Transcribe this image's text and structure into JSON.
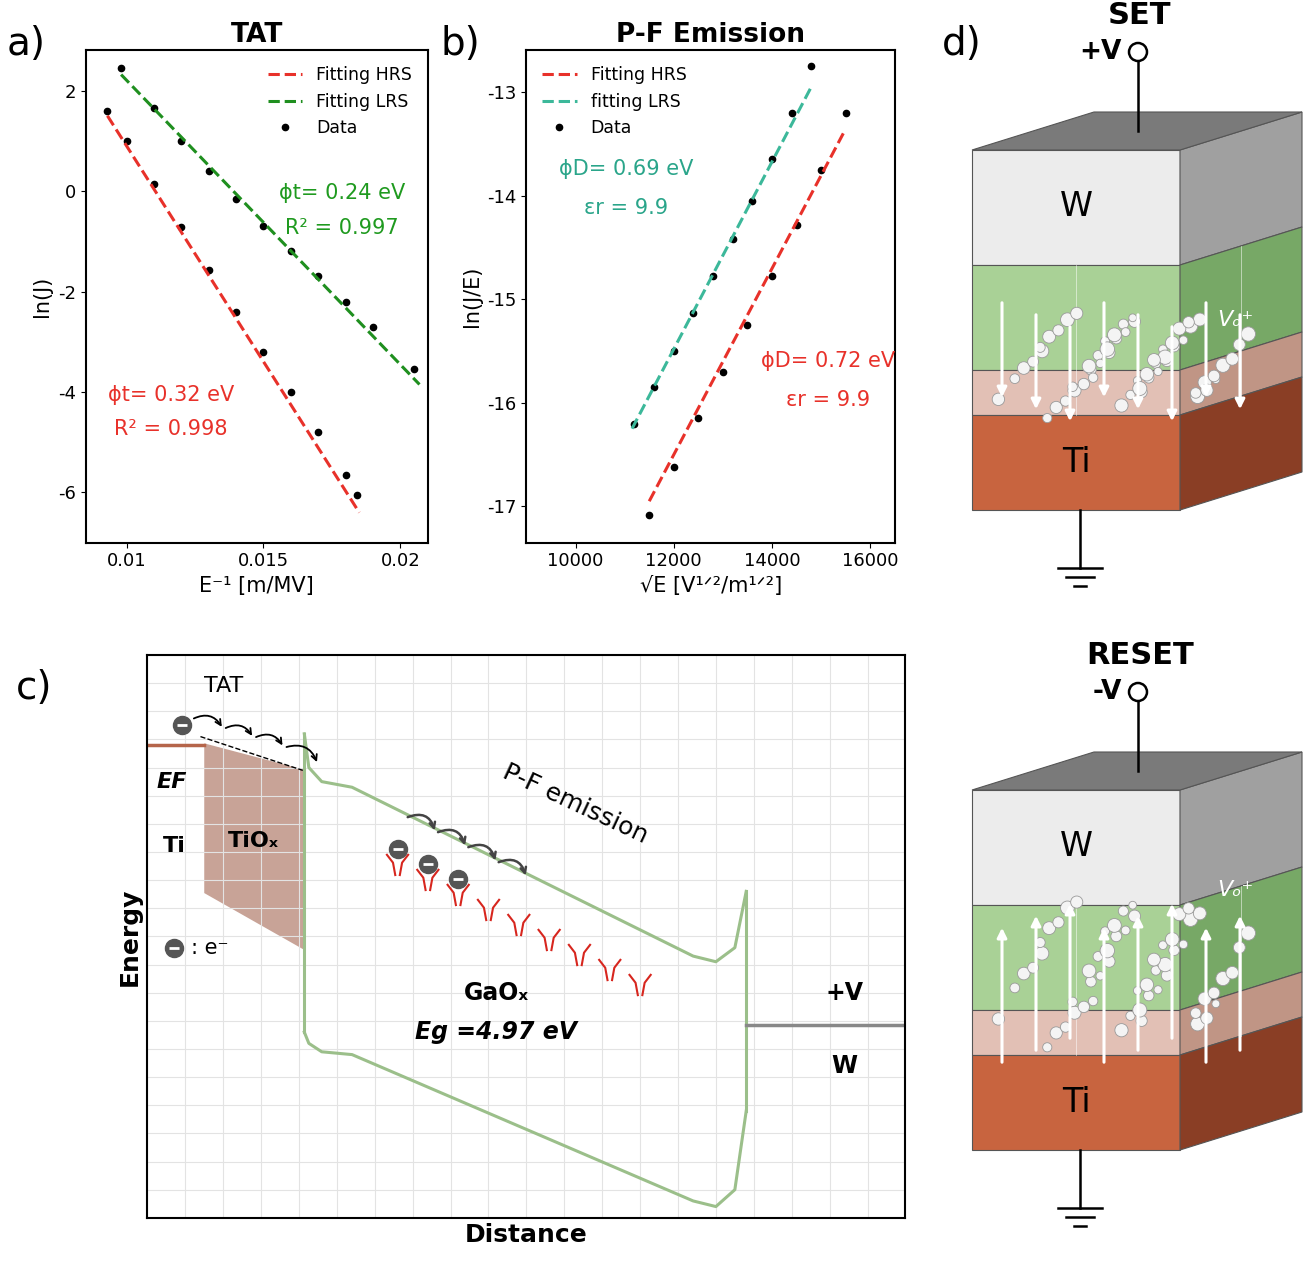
{
  "chart_data": [
    {
      "type": "line",
      "panel": "a)",
      "title": "TAT",
      "x_label": "E⁻¹ [m/MV]",
      "y_label": "ln(J)",
      "xlim": [
        0.0085,
        0.021
      ],
      "xticks": [
        0.01,
        0.015,
        0.02
      ],
      "ylim": [
        -7.0,
        2.8
      ],
      "yticks": [
        -6,
        -4,
        -2,
        0,
        2
      ],
      "legend": "upper right",
      "series": [
        {
          "name": "Fitting HRS",
          "color": "#e8312a",
          "line_style": "dashed",
          "x": [
            0.0093,
            0.0185
          ],
          "values": [
            1.5,
            -6.4
          ]
        },
        {
          "name": "Fitting LRS",
          "color": "#1f8f1f",
          "line_style": "dashed",
          "x": [
            0.0098,
            0.0207
          ],
          "values": [
            2.32,
            -3.85
          ]
        },
        {
          "name": "Data",
          "color": "#000000",
          "marker": "circle",
          "line_style": "none",
          "x": [
            0.0093,
            0.01,
            0.011,
            0.012,
            0.013,
            0.014,
            0.015,
            0.016,
            0.017,
            0.018,
            0.0184,
            null,
            0.0098,
            0.011,
            0.012,
            0.013,
            0.014,
            0.015,
            0.016,
            0.017,
            0.018,
            0.019,
            0.0205
          ],
          "values": [
            1.6,
            1.0,
            0.15,
            -0.72,
            -1.57,
            -2.4,
            -3.2,
            -4.0,
            -4.8,
            -5.65,
            -6.05,
            null,
            2.45,
            1.65,
            1.0,
            0.4,
            -0.15,
            -0.7,
            -1.2,
            -1.7,
            -2.2,
            -2.7,
            -3.55
          ]
        }
      ],
      "annotations": [
        {
          "lines": [
            "ϕt= 0.24 eV",
            "R² = 0.997"
          ],
          "color": "#1f9a1f"
        },
        {
          "lines": [
            "ϕt= 0.32 eV",
            "R² = 0.998"
          ],
          "color": "#e8312a"
        }
      ]
    },
    {
      "type": "line",
      "panel": "b)",
      "title": "P-F Emission",
      "x_label": "√E [V¹ᐟ²/m¹ᐟ²]",
      "y_label": "ln(J/E)",
      "xlim": [
        9000,
        16500
      ],
      "xticks": [
        10000,
        12000,
        14000,
        16000
      ],
      "ylim": [
        -17.35,
        -12.6
      ],
      "yticks": [
        -17,
        -16,
        -15,
        -14,
        -13
      ],
      "legend": "upper left",
      "series": [
        {
          "name": "Fitting HRS",
          "color": "#e8312a",
          "line_style": "dashed",
          "x": [
            11500,
            15450
          ],
          "values": [
            -16.95,
            -13.4
          ]
        },
        {
          "name": "fitting LRS",
          "color": "#3cb89a",
          "line_style": "dashed",
          "x": [
            11150,
            14800
          ],
          "values": [
            -16.25,
            -12.95
          ]
        },
        {
          "name": "Data",
          "color": "#000000",
          "marker": "circle",
          "line_style": "none",
          "x": [
            11500,
            12000,
            12500,
            13000,
            13500,
            14000,
            14500,
            15000,
            15500,
            null,
            11200,
            11600,
            12000,
            12400,
            12800,
            13200,
            13600,
            14000,
            14400,
            14800
          ],
          "values": [
            -17.08,
            -16.62,
            -16.15,
            -15.7,
            -15.25,
            -14.78,
            -14.28,
            -13.75,
            -13.2,
            null,
            -16.2,
            -15.85,
            -15.5,
            -15.13,
            -14.78,
            -14.42,
            -14.05,
            -13.65,
            -13.2,
            -12.75
          ]
        }
      ],
      "annotations": [
        {
          "lines": [
            "ϕD= 0.69 eV",
            "εr = 9.9"
          ],
          "color": "#2aa58a"
        },
        {
          "lines": [
            "ϕD= 0.72 eV",
            "εr = 9.9"
          ],
          "color": "#e8312a"
        }
      ]
    }
  ],
  "band_diagram": {
    "panel": "c)",
    "x_label": "Distance",
    "y_label": "Energy",
    "labels": {
      "tat": "TAT",
      "pf": "P-F emission",
      "fermi": "EF",
      "metal_left": "Ti",
      "interlayer": "TiOₓ",
      "electron": ": e⁻",
      "oxide": "GaOₓ",
      "band_gap": "Eg =4.97 eV",
      "bias": "+V",
      "metal_right": "W"
    }
  },
  "schematic": {
    "panel": "d)",
    "states": [
      {
        "title": "SET",
        "bias": "+V",
        "top": "W",
        "bottom": "Ti",
        "ion": "Vₒ⁺"
      },
      {
        "title": "RESET",
        "bias": "-V",
        "top": "W",
        "bottom": "Ti",
        "ion": "Vₒ⁺"
      }
    ]
  }
}
